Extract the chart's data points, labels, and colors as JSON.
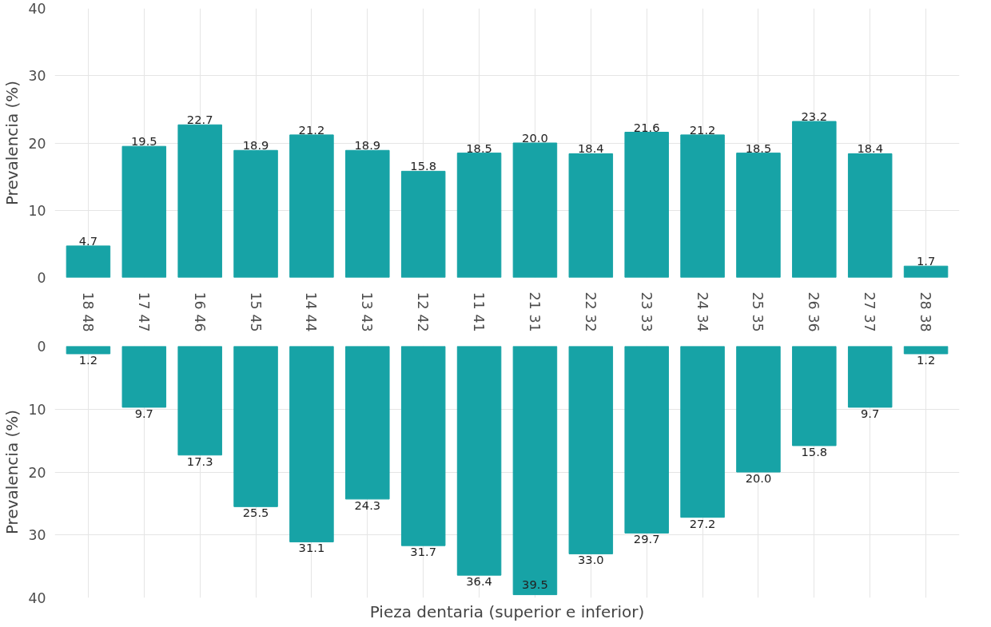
{
  "chart_data": [
    {
      "type": "bar",
      "ylabel": "Prevalencia (%)",
      "categories": [
        "18",
        "17",
        "16",
        "15",
        "14",
        "13",
        "12",
        "11",
        "21",
        "22",
        "23",
        "24",
        "25",
        "26",
        "27",
        "28"
      ],
      "values": [
        4.7,
        19.5,
        22.7,
        18.9,
        21.2,
        18.9,
        15.8,
        18.5,
        20,
        18.4,
        21.6,
        21.2,
        18.5,
        23.2,
        18.4,
        1.7
      ],
      "value_labels": [
        "4.7",
        "19.5",
        "22.7",
        "18.9",
        "21.2",
        "18.9",
        "15.8",
        "18.5",
        "20.0",
        "18.4",
        "21.6",
        "21.2",
        "18.5",
        "23.2",
        "18.4",
        "1.7"
      ],
      "color": "#17a3a6",
      "ylim": [
        0,
        40
      ],
      "yticks": [
        0,
        10,
        20,
        30,
        40
      ],
      "grid": true
    },
    {
      "type": "bar",
      "ylabel": "Prevalencia (%)",
      "xlabel": "Pieza dentaria (superior e inferior)",
      "categories": [
        "48",
        "47",
        "46",
        "45",
        "44",
        "43",
        "42",
        "41",
        "31",
        "32",
        "33",
        "34",
        "35",
        "36",
        "37",
        "38"
      ],
      "values": [
        1.2,
        9.7,
        17.3,
        25.5,
        31.1,
        24.3,
        31.7,
        36.4,
        39.5,
        33,
        29.7,
        27.2,
        20,
        15.8,
        9.7,
        1.2
      ],
      "value_labels": [
        "1.2",
        "9.7",
        "17.3",
        "25.5",
        "31.1",
        "24.3",
        "31.7",
        "36.4",
        "39.5",
        "33.0",
        "29.7",
        "27.2",
        "20.0",
        "15.8",
        "9.7",
        "1.2"
      ],
      "color": "#17a3a6",
      "ylim": [
        40,
        0
      ],
      "yticks": [
        0,
        10,
        20,
        30,
        40
      ],
      "grid": true
    }
  ]
}
